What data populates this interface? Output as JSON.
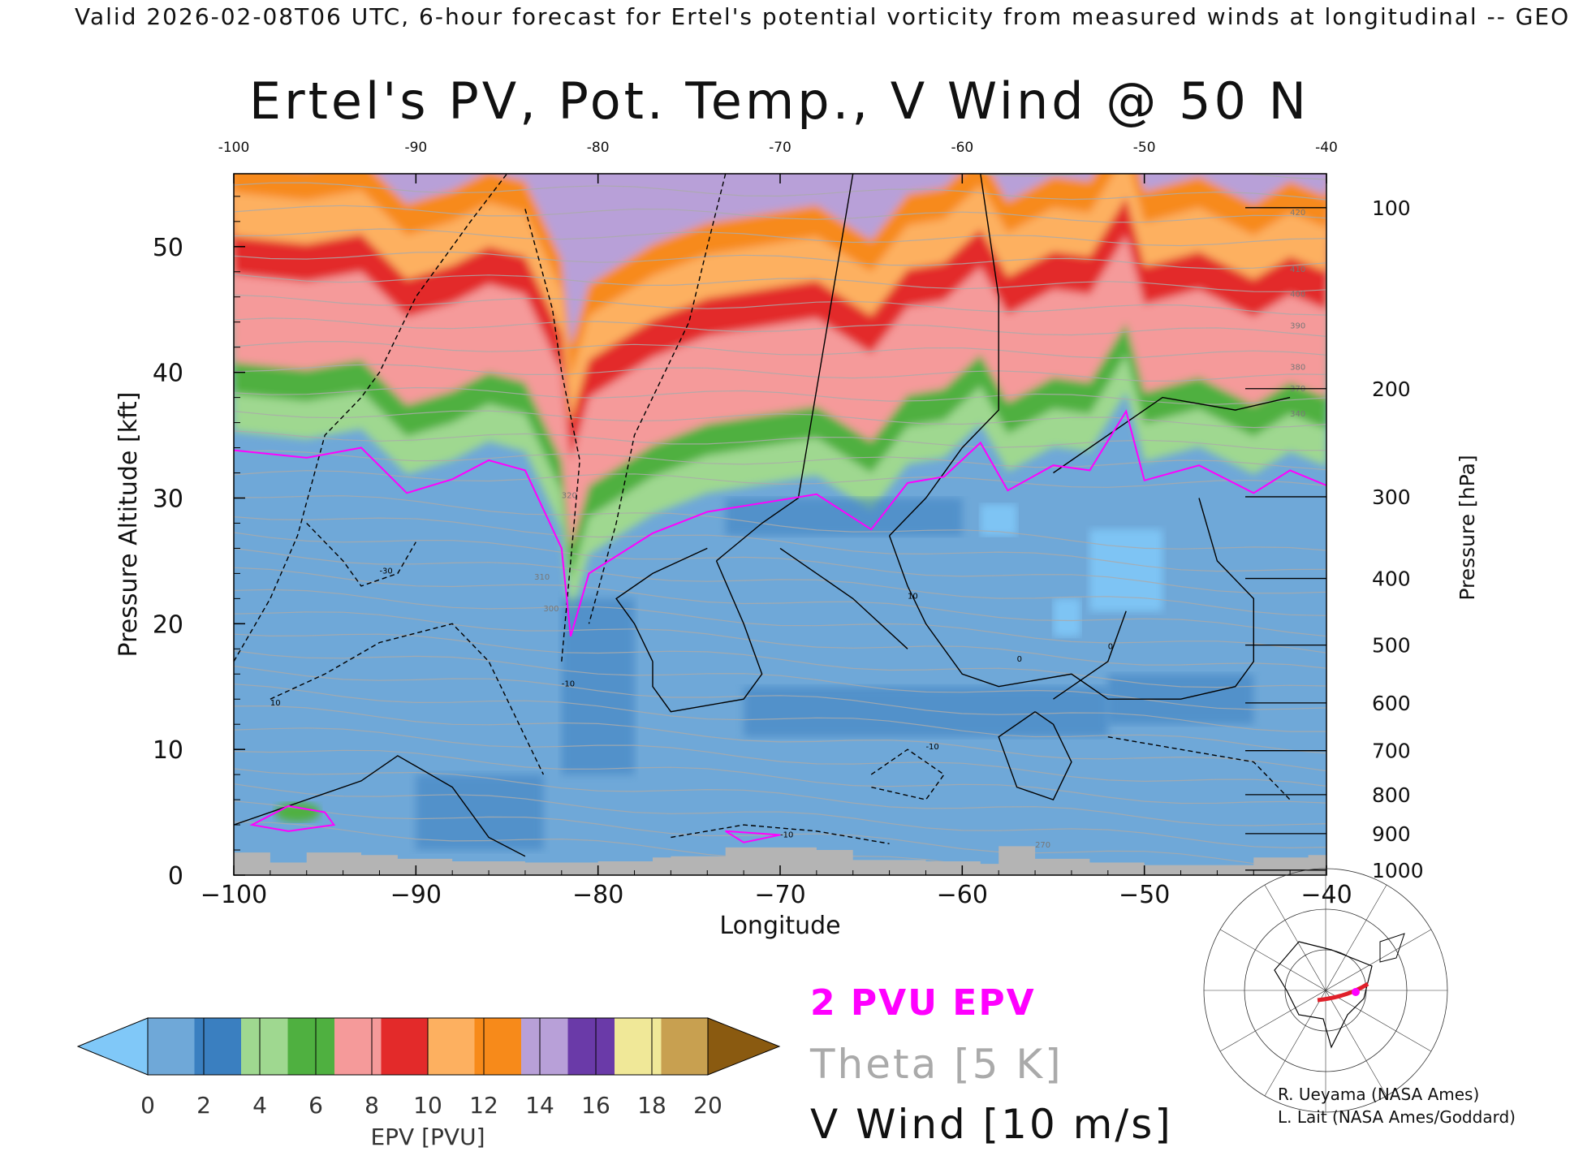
{
  "header": "Valid 2026-02-08T06 UTC, 6-hour forecast for Ertel's potential vorticity from measured winds at longitudinal -- GEO",
  "title": "Ertel's PV, Pot. Temp., V Wind @ 50 N",
  "legend": {
    "pv_contour": "2 PVU EPV",
    "theta": "Theta [5 K]",
    "wind": "V Wind [10 m/s]"
  },
  "credits": [
    "R. Ueyama (NASA Ames)",
    "L. Lait (NASA Ames/Goddard)"
  ],
  "colors": {
    "pv_contour": "#ff00ff",
    "theta": "#aaaaaa",
    "wind": "#000000",
    "below_scale": "#80c8f8",
    "above_scale": "#8a5a10",
    "ground": "#b4b4b4",
    "bins": [
      "#6fa8d8",
      "#3a7fc0",
      "#9fd890",
      "#4fb040",
      "#f59a9a",
      "#e32a2a",
      "#fdb060",
      "#f78a1a",
      "#b8a0d8",
      "#6a3aa8",
      "#f0e898",
      "#c8a050"
    ]
  },
  "chart_data": {
    "type": "heatmap",
    "title": "Ertel's PV, Pot. Temp., V Wind @ 50 N",
    "xlabel": "Longitude",
    "ylabel": "Pressure Altitude [kft]",
    "ylabel_right": "Pressure [hPa]",
    "xlim": [
      -100,
      -40
    ],
    "ylim": [
      0,
      55.8
    ],
    "x_ticks": [
      -100,
      -90,
      -80,
      -70,
      -60,
      -50,
      -40
    ],
    "x_tick_labels": [
      "−100",
      "−90",
      "−80",
      "−70",
      "−60",
      "−50",
      "−40"
    ],
    "x_top_tick_labels": [
      "-100",
      "-90",
      "-80",
      "-70",
      "-60",
      "-50",
      "-40"
    ],
    "y_ticks": [
      0,
      10,
      20,
      30,
      40,
      50
    ],
    "y_tick_labels": [
      "0",
      "10",
      "20",
      "30",
      "40",
      "50"
    ],
    "pressure_ticks": [
      {
        "label": "1000",
        "kft": 0.4
      },
      {
        "label": "900",
        "kft": 3.3
      },
      {
        "label": "800",
        "kft": 6.4
      },
      {
        "label": "700",
        "kft": 9.9
      },
      {
        "label": "600",
        "kft": 13.7
      },
      {
        "label": "500",
        "kft": 18.3
      },
      {
        "label": "400",
        "kft": 23.6
      },
      {
        "label": "300",
        "kft": 30.1
      },
      {
        "label": "200",
        "kft": 38.7
      },
      {
        "label": "100",
        "kft": 53.1
      }
    ],
    "colorbar": {
      "label": "EPV [PVU]",
      "ticks": [
        "0",
        "2",
        "4",
        "6",
        "8",
        "10",
        "12",
        "14",
        "16",
        "18",
        "20"
      ],
      "range": [
        0,
        20
      ],
      "bin_width": 2,
      "extend": "both"
    },
    "tropopause_2pvu": [
      {
        "lon": -100,
        "kft": 33.8
      },
      {
        "lon": -96,
        "kft": 33.2
      },
      {
        "lon": -93,
        "kft": 34.0
      },
      {
        "lon": -90.5,
        "kft": 30.4
      },
      {
        "lon": -88,
        "kft": 31.5
      },
      {
        "lon": -86,
        "kft": 33.0
      },
      {
        "lon": -84,
        "kft": 32.2
      },
      {
        "lon": -82,
        "kft": 26.0
      },
      {
        "lon": -81.5,
        "kft": 19.0
      },
      {
        "lon": -80.5,
        "kft": 24.0
      },
      {
        "lon": -77,
        "kft": 27.2
      },
      {
        "lon": -74,
        "kft": 28.9
      },
      {
        "lon": -71,
        "kft": 29.6
      },
      {
        "lon": -68,
        "kft": 30.3
      },
      {
        "lon": -65,
        "kft": 27.5
      },
      {
        "lon": -63,
        "kft": 31.2
      },
      {
        "lon": -61,
        "kft": 31.7
      },
      {
        "lon": -59,
        "kft": 34.4
      },
      {
        "lon": -57.5,
        "kft": 30.6
      },
      {
        "lon": -55,
        "kft": 32.6
      },
      {
        "lon": -53,
        "kft": 32.2
      },
      {
        "lon": -51,
        "kft": 36.9
      },
      {
        "lon": -50,
        "kft": 31.4
      },
      {
        "lon": -47,
        "kft": 32.6
      },
      {
        "lon": -44,
        "kft": 30.4
      },
      {
        "lon": -42,
        "kft": 32.2
      },
      {
        "lon": -40,
        "kft": 31.0
      }
    ],
    "stratosphere_bands": [
      {
        "pvu_bin": "2-4",
        "kft_above_tropopause": 1.5
      },
      {
        "pvu_bin": "4-6",
        "kft_above_tropopause": 4.5
      },
      {
        "pvu_bin": "6-8",
        "kft_above_tropopause": 7.0
      },
      {
        "pvu_bin": "8-10",
        "kft_above_tropopause": 14.0
      },
      {
        "pvu_bin": "10-12",
        "kft_above_tropopause": 17.0
      },
      {
        "pvu_bin": "12-14",
        "kft_above_tropopause": 20.5
      },
      {
        "pvu_bin": "14-16",
        "kft_above_tropopause": 23.0
      }
    ],
    "theta_contour_labels_k": [
      "270",
      "300",
      "310",
      "320",
      "340",
      "370",
      "380",
      "390",
      "400",
      "410",
      "420"
    ],
    "v_wind_contour_labels_ms": [
      "-30",
      "-10",
      "0",
      "10"
    ]
  }
}
